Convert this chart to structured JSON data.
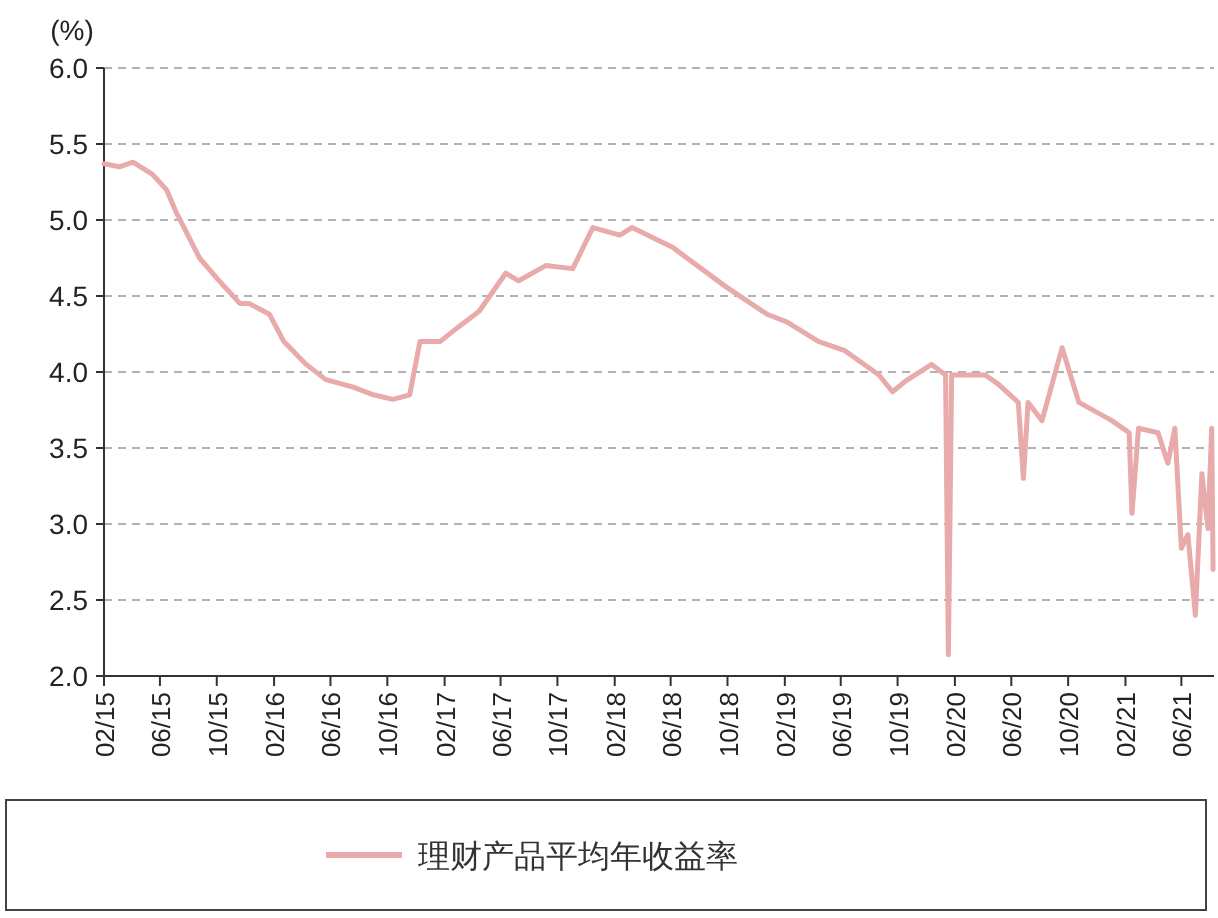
{
  "chart_data": {
    "type": "line",
    "ylabel": "(%)",
    "grid": "y",
    "legend": "bottom",
    "line_style": "solid",
    "ylim": [
      2,
      6
    ],
    "yticks": [
      {
        "value": 2,
        "label": "2.0"
      },
      {
        "value": 2.5,
        "label": "2.5"
      },
      {
        "value": 3,
        "label": "3.0"
      },
      {
        "value": 3.5,
        "label": "3.5"
      },
      {
        "value": 4,
        "label": "4.0"
      },
      {
        "value": 4.5,
        "label": "4.5"
      },
      {
        "value": 5,
        "label": "5.0"
      },
      {
        "value": 5.5,
        "label": "5.5"
      },
      {
        "value": 6,
        "label": "6.0"
      }
    ],
    "xlim": [
      "2015-02",
      "2021-08-10"
    ],
    "xticks": [
      {
        "value": "2015-02",
        "label": "02/15"
      },
      {
        "value": "2015-06",
        "label": "06/15"
      },
      {
        "value": "2015-10",
        "label": "10/15"
      },
      {
        "value": "2016-02",
        "label": "02/16"
      },
      {
        "value": "2016-06",
        "label": "06/16"
      },
      {
        "value": "2016-10",
        "label": "10/16"
      },
      {
        "value": "2017-02",
        "label": "02/17"
      },
      {
        "value": "2017-06",
        "label": "06/17"
      },
      {
        "value": "2017-10",
        "label": "10/17"
      },
      {
        "value": "2018-02",
        "label": "02/18"
      },
      {
        "value": "2018-06",
        "label": "06/18"
      },
      {
        "value": "2018-10",
        "label": "10/18"
      },
      {
        "value": "2019-02",
        "label": "02/19"
      },
      {
        "value": "2019-06",
        "label": "06/19"
      },
      {
        "value": "2019-10",
        "label": "10/19"
      },
      {
        "value": "2020-02",
        "label": "02/20"
      },
      {
        "value": "2020-06",
        "label": "06/20"
      },
      {
        "value": "2020-10",
        "label": "10/20"
      },
      {
        "value": "2021-02",
        "label": "02/21"
      },
      {
        "value": "2021-06",
        "label": "06/21"
      }
    ],
    "series": [
      {
        "name": "理财产品平均年收益率",
        "color": "#e8aaaa",
        "x": [
          "2015-02-01",
          "2015-03-06",
          "2015-04-04",
          "2015-05-16",
          "2015-06-15",
          "2015-07-06",
          "2015-08-25",
          "2015-10-06",
          "2015-11-20",
          "2015-12-10",
          "2016-01-22",
          "2016-02-22",
          "2016-04-10",
          "2016-05-22",
          "2016-07-20",
          "2016-09-01",
          "2016-10-13",
          "2016-11-18",
          "2016-12-10",
          "2017-01-22",
          "2017-03-04",
          "2017-04-16",
          "2017-06-12",
          "2017-07-10",
          "2017-09-06",
          "2017-11-03",
          "2017-12-16",
          "2018-02-12",
          "2018-03-10",
          "2018-06-05",
          "2018-09-28",
          "2018-12-25",
          "2019-02-05",
          "2019-04-15",
          "2019-06-10",
          "2019-08-22",
          "2019-09-20",
          "2019-10-18",
          "2019-12-13",
          "2020-01-12",
          "2020-01-18",
          "2020-01-25",
          "2020-04-06",
          "2020-05-04",
          "2020-06-16",
          "2020-06-27",
          "2020-07-07",
          "2020-08-06",
          "2020-09-18",
          "2020-10-24",
          "2021-01-03",
          "2021-02-09",
          "2021-02-15",
          "2021-03-01",
          "2021-04-12",
          "2021-05-03",
          "2021-05-18",
          "2021-06-01",
          "2021-06-15",
          "2021-07-01",
          "2021-07-15",
          "2021-07-28",
          "2021-08-05",
          "2021-08-08"
        ],
        "values": [
          5.37,
          5.35,
          5.38,
          5.3,
          5.2,
          5.05,
          4.75,
          4.6,
          4.45,
          4.45,
          4.38,
          4.2,
          4.05,
          3.95,
          3.9,
          3.85,
          3.82,
          3.85,
          4.2,
          4.2,
          4.3,
          4.4,
          4.65,
          4.6,
          4.7,
          4.68,
          4.95,
          4.9,
          4.95,
          4.82,
          4.56,
          4.38,
          4.33,
          4.2,
          4.14,
          3.98,
          3.87,
          3.94,
          4.05,
          3.98,
          2.14,
          3.98,
          3.98,
          3.92,
          3.8,
          3.3,
          3.8,
          3.68,
          4.16,
          3.8,
          3.68,
          3.6,
          3.07,
          3.63,
          3.6,
          3.4,
          3.63,
          2.84,
          2.93,
          2.4,
          3.33,
          2.97,
          3.63,
          2.7
        ]
      }
    ]
  }
}
